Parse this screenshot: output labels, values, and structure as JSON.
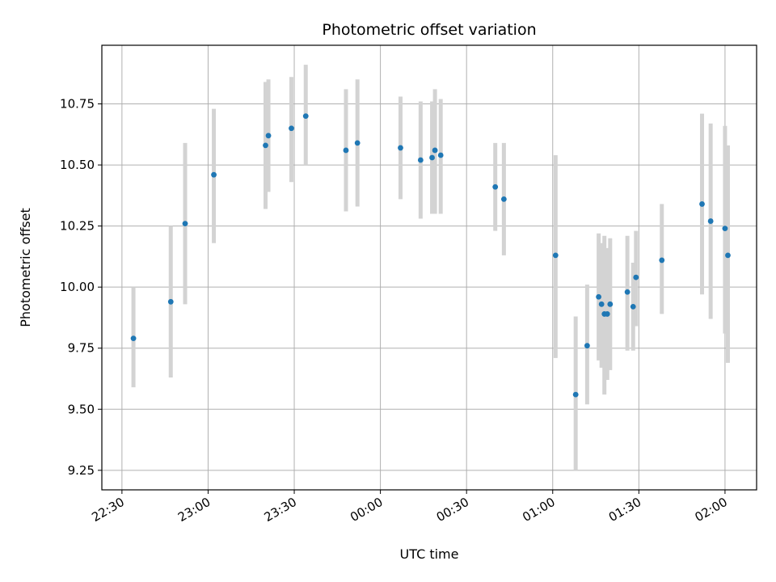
{
  "chart_data": {
    "type": "scatter",
    "title": "Photometric offset variation",
    "xlabel": "UTC time",
    "ylabel": "Photometric offset",
    "x_axis": {
      "kind": "time",
      "range": [
        "22:23",
        "02:11"
      ],
      "ticks": [
        "22:30",
        "23:00",
        "23:30",
        "00:00",
        "00:30",
        "01:00",
        "01:30",
        "02:00"
      ],
      "tick_label_rotation": "slanted"
    },
    "ylim": [
      9.17,
      10.99
    ],
    "y_ticks": [
      "9.25",
      "9.50",
      "9.75",
      "10.00",
      "10.25",
      "10.50",
      "10.75"
    ],
    "grid": true,
    "colors": {
      "points": "#1f77b4",
      "error_bars": "#d3d3d3",
      "grid": "#b0b0b0"
    },
    "points": [
      {
        "x": "22:34",
        "y": 9.79,
        "ylo": 9.59,
        "yhi": 10.0
      },
      {
        "x": "22:47",
        "y": 9.94,
        "ylo": 9.63,
        "yhi": 10.25
      },
      {
        "x": "22:52",
        "y": 10.26,
        "ylo": 9.93,
        "yhi": 10.59
      },
      {
        "x": "23:02",
        "y": 10.46,
        "ylo": 10.18,
        "yhi": 10.73
      },
      {
        "x": "23:20",
        "y": 10.58,
        "ylo": 10.32,
        "yhi": 10.84
      },
      {
        "x": "23:21",
        "y": 10.62,
        "ylo": 10.39,
        "yhi": 10.85
      },
      {
        "x": "23:29",
        "y": 10.65,
        "ylo": 10.43,
        "yhi": 10.86
      },
      {
        "x": "23:34",
        "y": 10.7,
        "ylo": 10.5,
        "yhi": 10.91
      },
      {
        "x": "23:48",
        "y": 10.56,
        "ylo": 10.31,
        "yhi": 10.81
      },
      {
        "x": "23:52",
        "y": 10.59,
        "ylo": 10.33,
        "yhi": 10.85
      },
      {
        "x": "00:07",
        "y": 10.57,
        "ylo": 10.36,
        "yhi": 10.78
      },
      {
        "x": "00:14",
        "y": 10.52,
        "ylo": 10.28,
        "yhi": 10.76
      },
      {
        "x": "00:18",
        "y": 10.53,
        "ylo": 10.3,
        "yhi": 10.76
      },
      {
        "x": "00:19",
        "y": 10.56,
        "ylo": 10.3,
        "yhi": 10.81
      },
      {
        "x": "00:21",
        "y": 10.54,
        "ylo": 10.3,
        "yhi": 10.77
      },
      {
        "x": "00:40",
        "y": 10.41,
        "ylo": 10.23,
        "yhi": 10.59
      },
      {
        "x": "00:43",
        "y": 10.36,
        "ylo": 10.13,
        "yhi": 10.59
      },
      {
        "x": "01:01",
        "y": 10.13,
        "ylo": 9.71,
        "yhi": 10.54
      },
      {
        "x": "01:08",
        "y": 9.56,
        "ylo": 9.25,
        "yhi": 9.88
      },
      {
        "x": "01:12",
        "y": 9.76,
        "ylo": 9.52,
        "yhi": 10.01
      },
      {
        "x": "01:16",
        "y": 9.96,
        "ylo": 9.7,
        "yhi": 10.22
      },
      {
        "x": "01:17",
        "y": 9.93,
        "ylo": 9.67,
        "yhi": 10.18
      },
      {
        "x": "01:18",
        "y": 9.89,
        "ylo": 9.56,
        "yhi": 10.21
      },
      {
        "x": "01:19",
        "y": 9.89,
        "ylo": 9.62,
        "yhi": 10.16
      },
      {
        "x": "01:20",
        "y": 9.93,
        "ylo": 9.66,
        "yhi": 10.2
      },
      {
        "x": "01:26",
        "y": 9.98,
        "ylo": 9.74,
        "yhi": 10.21
      },
      {
        "x": "01:28",
        "y": 9.92,
        "ylo": 9.74,
        "yhi": 10.1
      },
      {
        "x": "01:29",
        "y": 10.04,
        "ylo": 9.84,
        "yhi": 10.23
      },
      {
        "x": "01:38",
        "y": 10.11,
        "ylo": 9.89,
        "yhi": 10.34
      },
      {
        "x": "01:52",
        "y": 10.34,
        "ylo": 9.97,
        "yhi": 10.71
      },
      {
        "x": "01:55",
        "y": 10.27,
        "ylo": 9.87,
        "yhi": 10.67
      },
      {
        "x": "02:00",
        "y": 10.24,
        "ylo": 9.81,
        "yhi": 10.66
      },
      {
        "x": "02:01",
        "y": 10.13,
        "ylo": 9.69,
        "yhi": 10.58
      }
    ]
  }
}
